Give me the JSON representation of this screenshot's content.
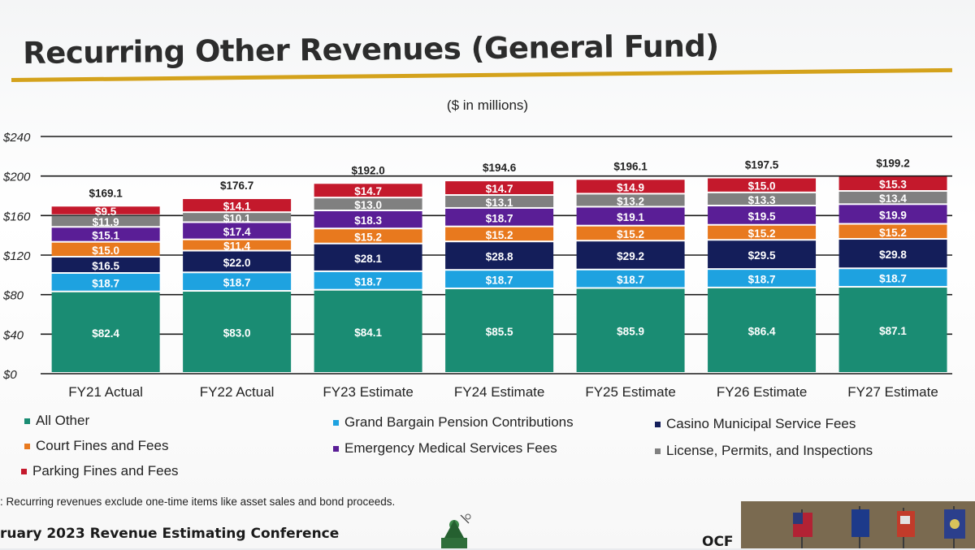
{
  "slide": {
    "title": "Recurring Other Revenues (General Fund)",
    "footnote": ": Recurring revenues exclude one-time items like asset sales and bond proceeds.",
    "conference": "ruary 2023 Revenue Estimating Conference",
    "org_abbrev": "OCF",
    "accent_color": "#d4a21c"
  },
  "chart_data": {
    "type": "bar",
    "stacked": true,
    "subtitle": "($ in millions)",
    "categories": [
      "FY21 Actual",
      "FY22 Actual",
      "FY23 Estimate",
      "FY24 Estimate",
      "FY25 Estimate",
      "FY26 Estimate",
      "FY27 Estimate"
    ],
    "ylim": [
      0,
      240
    ],
    "yticks": [
      "$0",
      "$40",
      "$80",
      "$120",
      "$160",
      "$200",
      "$240"
    ],
    "ytick_values": [
      0,
      40,
      80,
      120,
      160,
      200,
      240
    ],
    "totals": [
      "$169.1",
      "$176.7",
      "$192.0",
      "$194.6",
      "$196.1",
      "$197.5",
      "$199.2"
    ],
    "series": [
      {
        "name": "All Other",
        "color": "#1a8c73",
        "values": [
          82.4,
          83.0,
          84.1,
          85.5,
          85.9,
          86.4,
          87.1
        ],
        "labels": [
          "$82.4",
          "$83.0",
          "$84.1",
          "$85.5",
          "$85.9",
          "$86.4",
          "$87.1"
        ]
      },
      {
        "name": "Grand Bargain Pension Contributions",
        "color": "#1ea2e0",
        "values": [
          18.7,
          18.7,
          18.7,
          18.7,
          18.7,
          18.7,
          18.7
        ],
        "labels": [
          "$18.7",
          "$18.7",
          "$18.7",
          "$18.7",
          "$18.7",
          "$18.7",
          "$18.7"
        ]
      },
      {
        "name": "Casino Municipal Service Fees",
        "color": "#141e5a",
        "values": [
          16.5,
          22.0,
          28.1,
          28.8,
          29.2,
          29.5,
          29.8
        ],
        "labels": [
          "$16.5",
          "$22.0",
          "$28.1",
          "$28.8",
          "$29.2",
          "$29.5",
          "$29.8"
        ]
      },
      {
        "name": "Court Fines and Fees",
        "color": "#e8791e",
        "values": [
          15.0,
          11.4,
          15.2,
          15.2,
          15.2,
          15.2,
          15.2
        ],
        "labels": [
          "$15.0",
          "$11.4",
          "$15.2",
          "$15.2",
          "$15.2",
          "$15.2",
          "$15.2"
        ]
      },
      {
        "name": "Emergency Medical Services Fees",
        "color": "#5a1e96",
        "values": [
          15.1,
          17.4,
          18.3,
          18.7,
          19.1,
          19.5,
          19.9
        ],
        "labels": [
          "$15.1",
          "$17.4",
          "$18.3",
          "$18.7",
          "$19.1",
          "$19.5",
          "$19.9"
        ]
      },
      {
        "name": "License, Permits, and Inspections",
        "color": "#808080",
        "values": [
          11.9,
          10.1,
          13.0,
          13.1,
          13.2,
          13.3,
          13.4
        ],
        "labels": [
          "$11.9",
          "$10.1",
          "$13.0",
          "$13.1",
          "$13.2",
          "$13.3",
          "$13.4"
        ]
      },
      {
        "name": "Parking Fines and Fees",
        "color": "#c4192c",
        "values": [
          9.5,
          14.1,
          14.7,
          14.7,
          14.9,
          15.0,
          15.3
        ],
        "labels": [
          "$9.5",
          "$14.1",
          "$14.7",
          "$14.7",
          "$14.9",
          "$15.0",
          "$15.3"
        ]
      }
    ],
    "legend": "bottom"
  }
}
